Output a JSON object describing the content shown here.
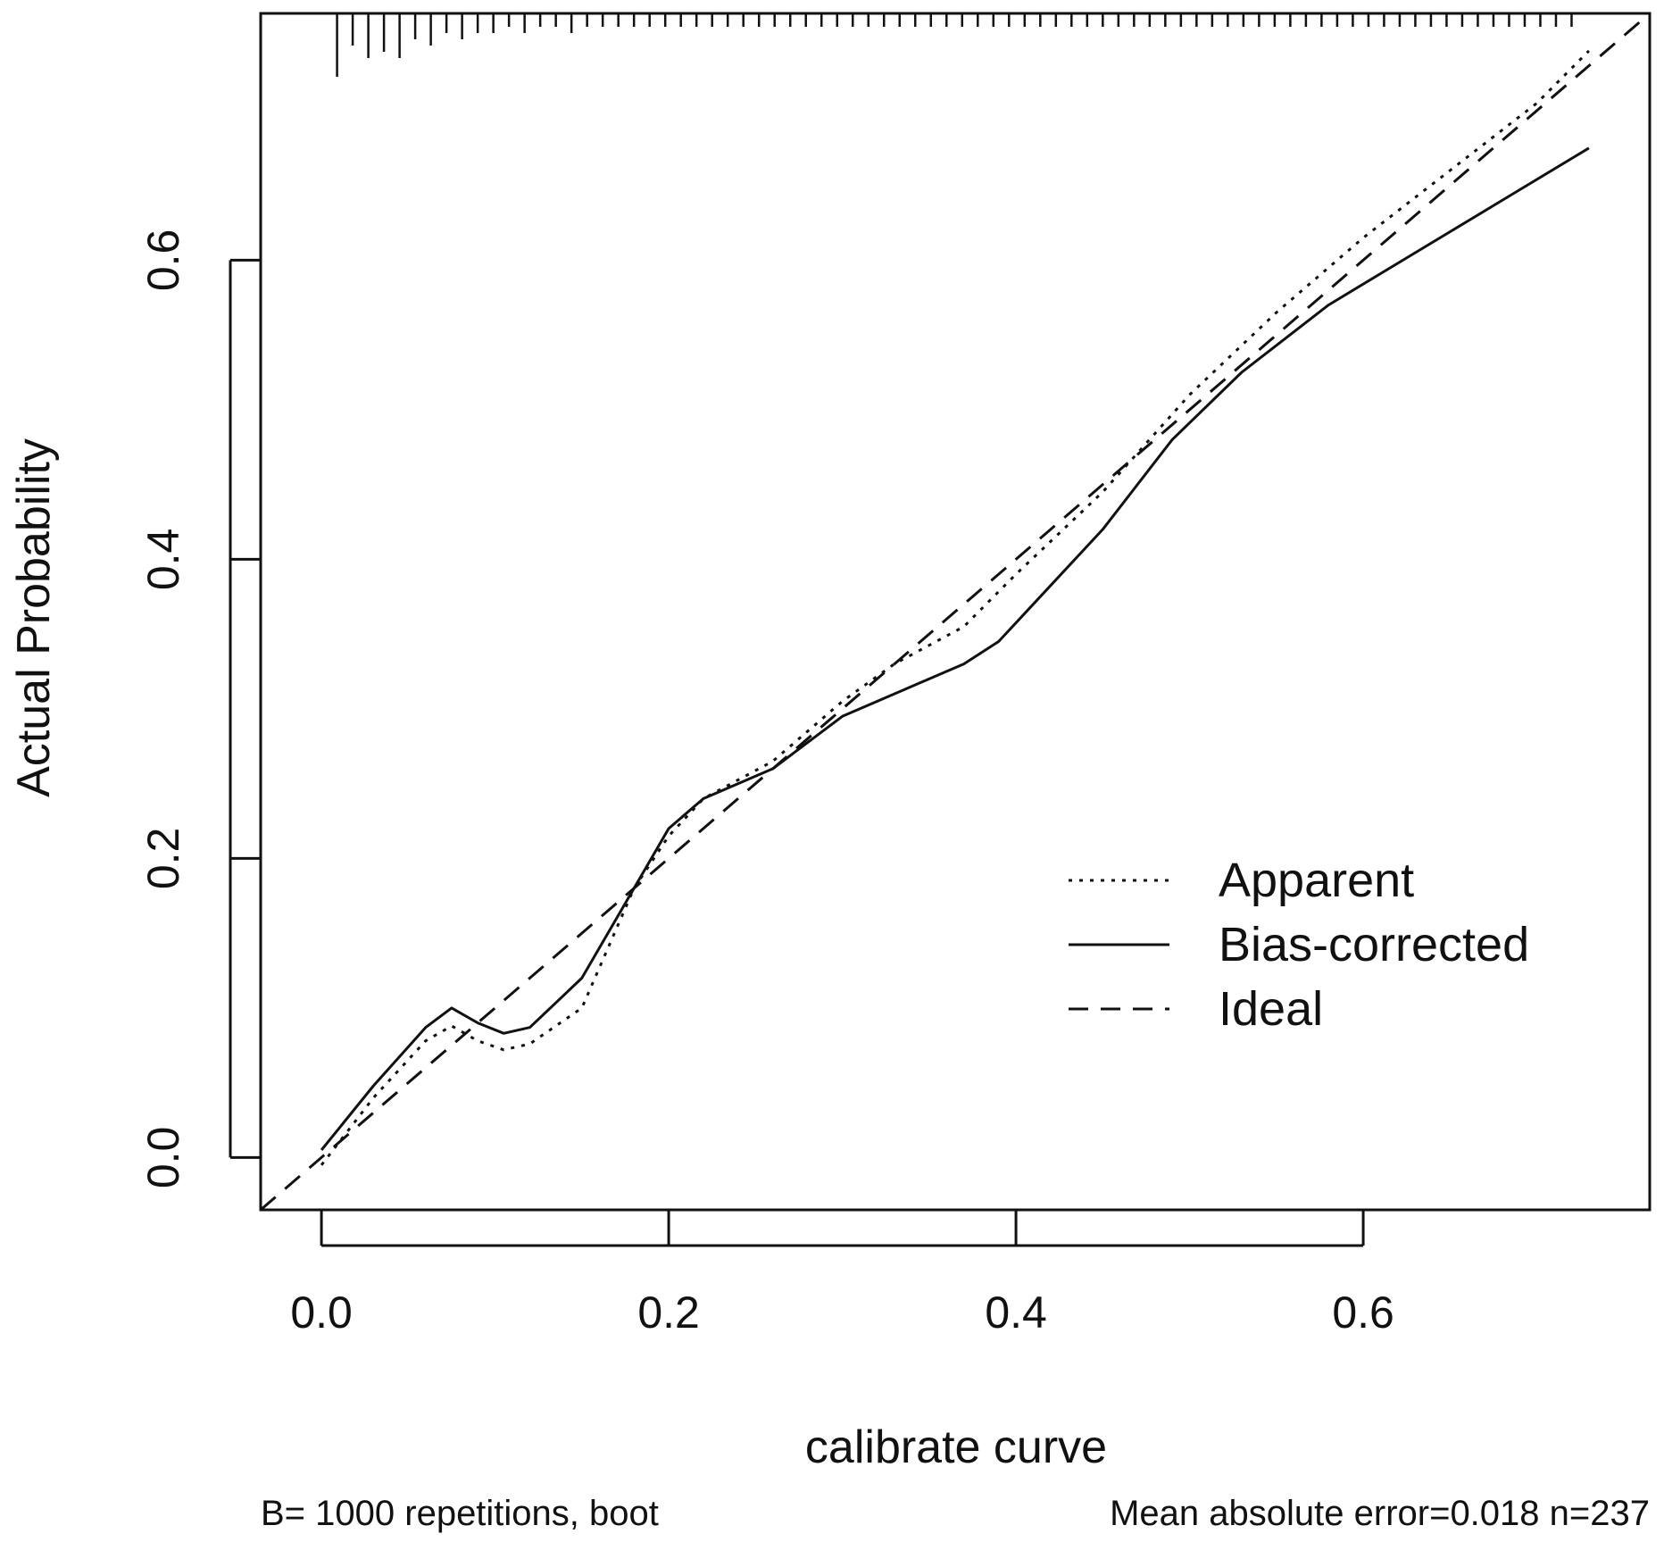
{
  "chart_data": {
    "type": "line",
    "xlabel": "calibrate curve",
    "ylabel": "Actual Probability",
    "xlim": [
      -0.035,
      0.765
    ],
    "ylim": [
      -0.035,
      0.765
    ],
    "x_ticks": [
      0.0,
      0.2,
      0.4,
      0.6
    ],
    "y_ticks": [
      0.0,
      0.2,
      0.4,
      0.6
    ],
    "x_tick_labels": [
      "0.0",
      "0.2",
      "0.4",
      "0.6"
    ],
    "y_tick_labels": [
      "0.0",
      "0.2",
      "0.4",
      "0.6"
    ],
    "legend": {
      "placement": "center-right",
      "entries": [
        {
          "label": "Apparent",
          "style": "dotted"
        },
        {
          "label": "Bias-corrected",
          "style": "solid"
        },
        {
          "label": "Ideal",
          "style": "dashed"
        }
      ]
    },
    "series": [
      {
        "name": "Apparent",
        "style": "dotted",
        "x": [
          0.0,
          0.03,
          0.06,
          0.075,
          0.09,
          0.105,
          0.12,
          0.15,
          0.18,
          0.2,
          0.22,
          0.26,
          0.3,
          0.33,
          0.37,
          0.4,
          0.45,
          0.5,
          0.55,
          0.6,
          0.65,
          0.7,
          0.73
        ],
        "y": [
          -0.005,
          0.04,
          0.078,
          0.088,
          0.078,
          0.072,
          0.076,
          0.1,
          0.18,
          0.215,
          0.24,
          0.265,
          0.305,
          0.33,
          0.355,
          0.39,
          0.445,
          0.51,
          0.565,
          0.615,
          0.66,
          0.705,
          0.74
        ]
      },
      {
        "name": "Bias-corrected",
        "style": "solid",
        "x": [
          0.0,
          0.03,
          0.06,
          0.075,
          0.09,
          0.105,
          0.12,
          0.15,
          0.18,
          0.2,
          0.22,
          0.26,
          0.3,
          0.33,
          0.37,
          0.39,
          0.45,
          0.49,
          0.53,
          0.58,
          0.63,
          0.68,
          0.73
        ],
        "y": [
          0.005,
          0.048,
          0.087,
          0.1,
          0.09,
          0.083,
          0.087,
          0.12,
          0.18,
          0.22,
          0.24,
          0.26,
          0.295,
          0.31,
          0.33,
          0.345,
          0.42,
          0.48,
          0.525,
          0.57,
          0.605,
          0.64,
          0.675
        ]
      },
      {
        "name": "Ideal",
        "style": "dashed",
        "x": [
          -0.035,
          0.765
        ],
        "y": [
          -0.035,
          0.765
        ]
      }
    ],
    "rug": {
      "x": [
        0.009,
        0.018,
        0.027,
        0.036,
        0.045,
        0.054,
        0.063,
        0.072,
        0.081,
        0.09,
        0.099,
        0.108,
        0.117,
        0.126,
        0.135,
        0.144,
        0.153,
        0.162,
        0.171,
        0.18,
        0.189,
        0.198,
        0.207,
        0.216,
        0.225,
        0.234,
        0.243,
        0.252,
        0.261,
        0.27,
        0.279,
        0.288,
        0.297,
        0.306,
        0.315,
        0.324,
        0.333,
        0.342,
        0.351,
        0.36,
        0.369,
        0.378,
        0.387,
        0.396,
        0.405,
        0.414,
        0.423,
        0.432,
        0.441,
        0.45,
        0.459,
        0.468,
        0.477,
        0.486,
        0.495,
        0.504,
        0.513,
        0.522,
        0.531,
        0.54,
        0.549,
        0.558,
        0.567,
        0.576,
        0.585,
        0.594,
        0.603,
        0.612,
        0.621,
        0.63,
        0.639,
        0.648,
        0.657,
        0.666,
        0.675,
        0.684,
        0.693,
        0.702,
        0.711,
        0.72
      ],
      "counts": [
        9,
        4,
        6,
        5,
        6,
        3,
        4,
        2,
        3,
        2,
        2,
        1,
        2,
        1,
        1,
        2,
        1,
        1,
        1,
        1,
        1,
        1,
        1,
        1,
        1,
        1,
        1,
        1,
        1,
        1,
        1,
        1,
        1,
        1,
        1,
        1,
        1,
        1,
        1,
        1,
        1,
        1,
        1,
        1,
        1,
        1,
        1,
        1,
        1,
        1,
        1,
        1,
        1,
        1,
        1,
        1,
        1,
        1,
        1,
        1,
        1,
        1,
        1,
        1,
        1,
        1,
        1,
        1,
        1,
        1,
        1,
        1,
        1,
        1,
        1,
        1,
        1,
        1,
        1,
        1
      ]
    },
    "footnotes": {
      "left": "B= 1000 repetitions, boot",
      "right": "Mean absolute error=0.018 n=237"
    }
  }
}
